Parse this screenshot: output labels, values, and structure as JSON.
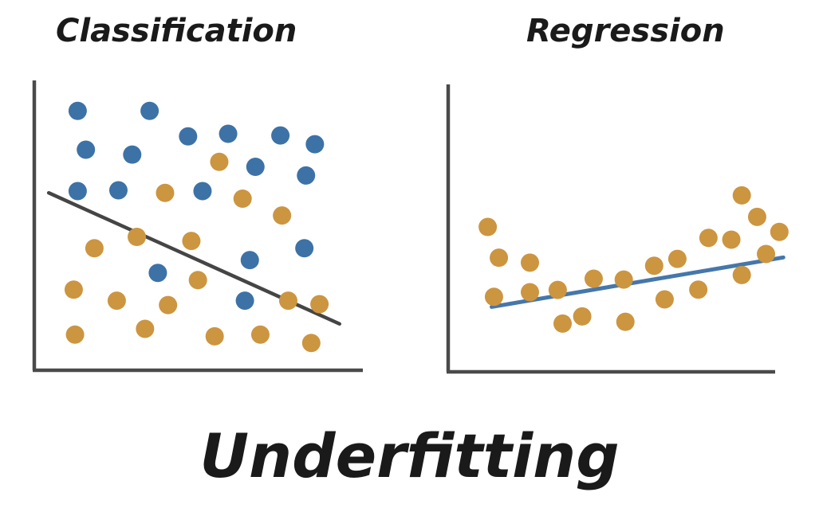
{
  "left_title": "Classification",
  "right_title": "Regression",
  "main_title": "Underfitting",
  "colors": {
    "class_a": "#3d72a6",
    "class_b": "#cc9540",
    "axis": "#4a4a4a",
    "left_line": "#454545",
    "right_line": "#4577aa"
  },
  "chart_data": [
    {
      "type": "scatter",
      "title": "Classification",
      "xlabel": "",
      "ylabel": "",
      "xlim": [
        0,
        100
      ],
      "ylim": [
        0,
        100
      ],
      "grid": false,
      "series": [
        {
          "color_key": "class_a",
          "points": [
            [
              13.2,
              89.5
            ],
            [
              15.7,
              76.1
            ],
            [
              13.2,
              61.8
            ],
            [
              35.1,
              89.5
            ],
            [
              29.8,
              74.4
            ],
            [
              25.6,
              62.1
            ],
            [
              46.8,
              80.7
            ],
            [
              59.0,
              81.6
            ],
            [
              51.2,
              61.8
            ],
            [
              74.9,
              81.0
            ],
            [
              67.3,
              70.2
            ],
            [
              85.4,
              78.0
            ],
            [
              82.7,
              67.2
            ],
            [
              65.6,
              38.0
            ],
            [
              82.2,
              42.1
            ],
            [
              37.6,
              33.6
            ],
            [
              64.1,
              24.0
            ]
          ]
        },
        {
          "color_key": "class_b",
          "points": [
            [
              56.3,
              71.9
            ],
            [
              39.8,
              61.2
            ],
            [
              63.4,
              59.2
            ],
            [
              75.4,
              53.4
            ],
            [
              18.3,
              42.1
            ],
            [
              31.2,
              46.0
            ],
            [
              47.8,
              44.6
            ],
            [
              12.0,
              27.8
            ],
            [
              25.1,
              24.0
            ],
            [
              40.7,
              22.5
            ],
            [
              49.8,
              31.1
            ],
            [
              77.3,
              24.0
            ],
            [
              86.8,
              22.8
            ],
            [
              12.4,
              12.3
            ],
            [
              33.7,
              14.3
            ],
            [
              54.9,
              11.7
            ],
            [
              68.8,
              12.3
            ],
            [
              84.3,
              9.4
            ]
          ]
        }
      ],
      "line": [
        [
          4.4,
          61.2
        ],
        [
          92.9,
          16.0
        ]
      ]
    },
    {
      "type": "scatter",
      "title": "Regression",
      "xlabel": "",
      "ylabel": "",
      "xlim": [
        0,
        100
      ],
      "ylim": [
        0,
        100
      ],
      "grid": false,
      "series": [
        {
          "color_key": "class_b",
          "points": [
            [
              12.1,
              50.4
            ],
            [
              15.5,
              39.7
            ],
            [
              14.0,
              26.1
            ],
            [
              25.0,
              38.0
            ],
            [
              25.0,
              27.7
            ],
            [
              33.5,
              28.5
            ],
            [
              35.0,
              16.8
            ],
            [
              41.0,
              19.3
            ],
            [
              44.5,
              32.4
            ],
            [
              53.7,
              32.1
            ],
            [
              54.2,
              17.4
            ],
            [
              63.0,
              36.9
            ],
            [
              66.2,
              25.2
            ],
            [
              70.1,
              39.3
            ],
            [
              76.5,
              28.6
            ],
            [
              79.6,
              46.6
            ],
            [
              86.6,
              46.0
            ],
            [
              89.8,
              33.7
            ],
            [
              89.8,
              61.4
            ],
            [
              94.5,
              53.9
            ],
            [
              97.2,
              41.0
            ],
            [
              101.3,
              48.7
            ]
          ]
        }
      ],
      "line": [
        [
          13.3,
          22.6
        ],
        [
          102.5,
          39.8
        ]
      ]
    }
  ]
}
